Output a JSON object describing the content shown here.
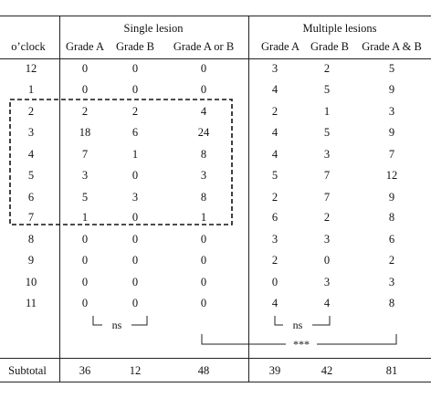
{
  "header": {
    "group_single": "Single lesion",
    "group_multiple": "Multiple lesions",
    "col_oclock": "o’clock",
    "col_single_a": "Grade A",
    "col_single_b": "Grade B",
    "col_single_ab": "Grade A or B",
    "col_multi_a": "Grade A",
    "col_multi_b": "Grade B",
    "col_multi_ab": "Grade A & B"
  },
  "rows": [
    {
      "oclock": "12",
      "sa": "0",
      "sb": "0",
      "sab": "0",
      "ma": "3",
      "mb": "2",
      "mab": "5"
    },
    {
      "oclock": "1",
      "sa": "0",
      "sb": "0",
      "sab": "0",
      "ma": "4",
      "mb": "5",
      "mab": "9"
    },
    {
      "oclock": "2",
      "sa": "2",
      "sb": "2",
      "sab": "4",
      "ma": "2",
      "mb": "1",
      "mab": "3"
    },
    {
      "oclock": "3",
      "sa": "18",
      "sb": "6",
      "sab": "24",
      "ma": "4",
      "mb": "5",
      "mab": "9"
    },
    {
      "oclock": "4",
      "sa": "7",
      "sb": "1",
      "sab": "8",
      "ma": "4",
      "mb": "3",
      "mab": "7"
    },
    {
      "oclock": "5",
      "sa": "3",
      "sb": "0",
      "sab": "3",
      "ma": "5",
      "mb": "7",
      "mab": "12"
    },
    {
      "oclock": "6",
      "sa": "5",
      "sb": "3",
      "sab": "8",
      "ma": "2",
      "mb": "7",
      "mab": "9"
    },
    {
      "oclock": "7",
      "sa": "1",
      "sb": "0",
      "sab": "1",
      "ma": "6",
      "mb": "2",
      "mab": "8"
    },
    {
      "oclock": "8",
      "sa": "0",
      "sb": "0",
      "sab": "0",
      "ma": "3",
      "mb": "3",
      "mab": "6"
    },
    {
      "oclock": "9",
      "sa": "0",
      "sb": "0",
      "sab": "0",
      "ma": "2",
      "mb": "0",
      "mab": "2"
    },
    {
      "oclock": "10",
      "sa": "0",
      "sb": "0",
      "sab": "0",
      "ma": "0",
      "mb": "3",
      "mab": "3"
    },
    {
      "oclock": "11",
      "sa": "0",
      "sb": "0",
      "sab": "0",
      "ma": "4",
      "mb": "4",
      "mab": "8"
    }
  ],
  "annotations": {
    "ns_single": "ns",
    "ns_multiple": "ns",
    "significance": "***"
  },
  "subtotal": {
    "label": "Subtotal",
    "sa": "36",
    "sb": "12",
    "sab": "48",
    "ma": "39",
    "mb": "42",
    "mab": "81"
  }
}
